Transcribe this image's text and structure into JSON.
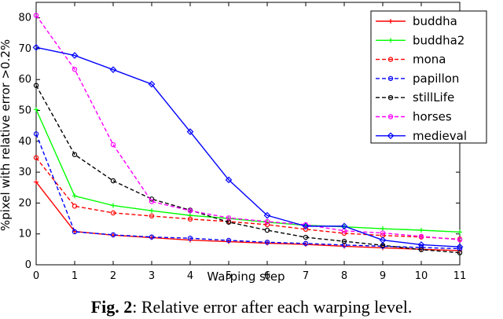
{
  "caption": {
    "label": "Fig. 2",
    "text": ": Relative error after each warping level."
  },
  "chart_data": {
    "type": "line",
    "title": "",
    "xlabel": "Warping step",
    "ylabel": "%pixel with relative error >0.2%",
    "xlim": [
      0,
      11
    ],
    "ylim": [
      0,
      85
    ],
    "xticks": [
      0,
      1,
      2,
      3,
      4,
      5,
      6,
      7,
      8,
      9,
      10,
      11
    ],
    "yticks": [
      0,
      10,
      20,
      30,
      40,
      50,
      60,
      70,
      80
    ],
    "grid": false,
    "legend_position": "top-right",
    "x": [
      0,
      1,
      2,
      3,
      4,
      5,
      6,
      7,
      8,
      9,
      10,
      11
    ],
    "series": [
      {
        "name": "buddha",
        "color": "#ff0000",
        "dash": "solid",
        "marker": "plus",
        "values": [
          26.8,
          10.8,
          9.6,
          8.8,
          8.0,
          7.5,
          7.0,
          6.6,
          6.0,
          5.5,
          5.0,
          4.6
        ]
      },
      {
        "name": "buddha2",
        "color": "#00ff00",
        "dash": "solid",
        "marker": "plus",
        "values": [
          50.3,
          22.3,
          19.2,
          17.5,
          16.0,
          15.0,
          13.8,
          12.8,
          12.3,
          11.7,
          11.2,
          10.6
        ]
      },
      {
        "name": "mona",
        "color": "#ff0000",
        "dash": "dashed",
        "marker": "circle",
        "values": [
          34.7,
          19.0,
          16.8,
          15.8,
          14.8,
          14.0,
          13.0,
          11.5,
          10.2,
          9.5,
          9.0,
          8.3
        ]
      },
      {
        "name": "papillon",
        "color": "#0000ff",
        "dash": "dashed",
        "marker": "circle",
        "values": [
          42.4,
          10.7,
          9.7,
          9.0,
          8.6,
          7.9,
          7.3,
          6.9,
          6.4,
          6.0,
          5.6,
          5.2
        ]
      },
      {
        "name": "stillLife",
        "color": "#000000",
        "dash": "dashed",
        "marker": "circle",
        "values": [
          58.1,
          35.7,
          27.2,
          21.3,
          17.7,
          13.8,
          11.2,
          8.9,
          7.6,
          6.3,
          4.9,
          3.9
        ]
      },
      {
        "name": "horses",
        "color": "#ff00ff",
        "dash": "dashed",
        "marker": "circle",
        "values": [
          80.8,
          63.3,
          38.9,
          20.5,
          17.5,
          15.2,
          14.0,
          13.0,
          11.0,
          10.3,
          9.2,
          8.1
        ]
      },
      {
        "name": "medieval",
        "color": "#0000ff",
        "dash": "solid",
        "marker": "diamond",
        "values": [
          70.4,
          67.8,
          63.2,
          58.5,
          43.1,
          27.5,
          16.0,
          12.5,
          12.5,
          8.0,
          6.5,
          5.8
        ]
      }
    ]
  }
}
